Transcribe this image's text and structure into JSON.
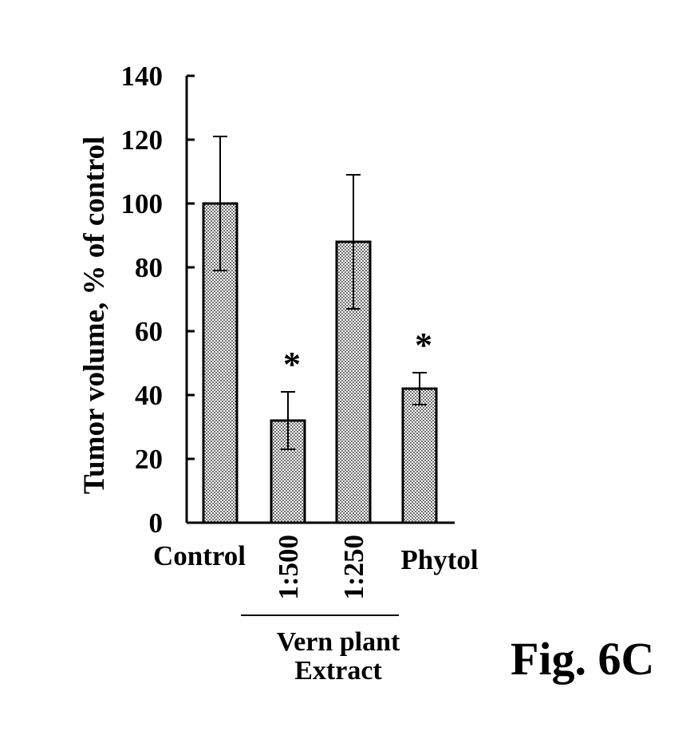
{
  "figure_label": "Fig. 6C",
  "chart_data": {
    "type": "bar",
    "categories": [
      "Control",
      "1:500",
      "1:250",
      "Phytol"
    ],
    "values": [
      100,
      32,
      88,
      42
    ],
    "errors": [
      21,
      9,
      21,
      5
    ],
    "significance": [
      "",
      "*",
      "",
      "*"
    ],
    "title": "",
    "xlabel": "",
    "ylabel": "Tumor volume, % of control",
    "ylim": [
      0,
      140
    ],
    "yticks": [
      0,
      20,
      40,
      60,
      80,
      100,
      120,
      140
    ],
    "group_label": {
      "line1": "Vern plant",
      "line2": "Extract",
      "categories": [
        "1:500",
        "1:250"
      ]
    },
    "colors": {
      "bar_fill": "#bdbdbd",
      "stroke": "#000000"
    },
    "grid": false
  }
}
